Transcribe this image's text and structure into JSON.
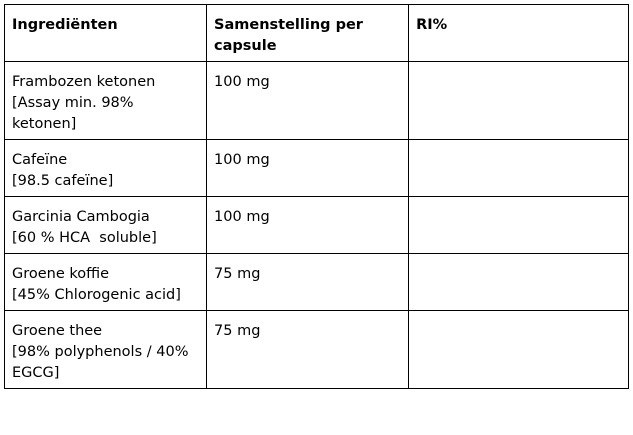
{
  "table": {
    "headers": {
      "ingredient": "Ingrediënten",
      "composition": "Samenstelling per capsule",
      "ri": "RI%"
    },
    "rows": [
      {
        "name_lines": [
          "Frambozen ketonen",
          "[Assay min. 98% ketonen]"
        ],
        "amount": "100 mg",
        "ri": ""
      },
      {
        "name_lines": [
          "Cafeïne",
          "[98.5 cafeïne]"
        ],
        "amount": "100 mg",
        "ri": ""
      },
      {
        "name_lines": [
          "Garcinia Cambogia",
          "[60 % HCA  soluble]"
        ],
        "amount": "100 mg",
        "ri": ""
      },
      {
        "name_lines": [
          "Groene koffie",
          "[45% Chlorogenic acid]"
        ],
        "amount": "75 mg",
        "ri": ""
      },
      {
        "name_lines": [
          "Groene thee",
          "[98% polyphenols / 40% EGCG]"
        ],
        "amount": "75 mg",
        "ri": ""
      }
    ]
  }
}
